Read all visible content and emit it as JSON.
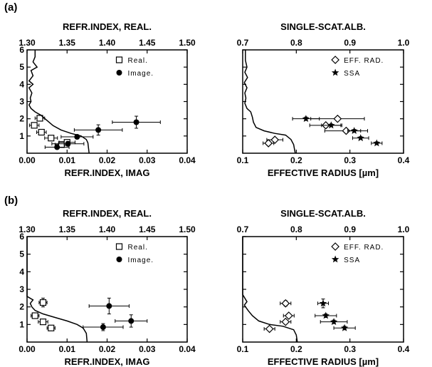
{
  "chart_data": [
    {
      "type": "scatter",
      "panel": "(a)",
      "side": "left",
      "xlabel_bottom": "REFR.INDEX, IMAG",
      "xlabel_top": "REFR.INDEX, REAL.",
      "xlim_bottom": [
        0.0,
        0.04
      ],
      "xlim_top": [
        1.3,
        1.5
      ],
      "ylim": [
        0,
        6
      ],
      "xticks_bottom": [
        "0.00",
        "0.01",
        "0.02",
        "0.03",
        "0.04"
      ],
      "xticks_top": [
        "1.30",
        "1.35",
        "1.40",
        "1.45",
        "1.50"
      ],
      "yticks": [
        "1",
        "2",
        "3",
        "4",
        "5",
        "6"
      ],
      "legend": [
        "Real.",
        "Image."
      ],
      "series": [
        {
          "name": "Real.",
          "axis": "top",
          "marker": "open-square",
          "points": [
            {
              "x": 1.316,
              "y": 2.03,
              "xerr": 0.006,
              "yerr": 0.08
            },
            {
              "x": 1.309,
              "y": 1.62,
              "xerr": 0.006,
              "yerr": 0.08
            },
            {
              "x": 1.318,
              "y": 1.22,
              "xerr": 0.006,
              "yerr": 0.08
            },
            {
              "x": 1.33,
              "y": 0.88,
              "xerr": 0.008,
              "yerr": 0.15
            },
            {
              "x": 1.343,
              "y": 0.5,
              "xerr": 0.008,
              "yerr": 0.08
            },
            {
              "x": 1.35,
              "y": 0.63,
              "xerr": 0.01,
              "yerr": 0.08
            }
          ]
        },
        {
          "name": "Image.",
          "axis": "bottom",
          "marker": "filled-circle",
          "points": [
            {
              "x": 0.0273,
              "y": 1.8,
              "xerr": 0.006,
              "yerr": 0.35
            },
            {
              "x": 0.0178,
              "y": 1.35,
              "xerr": 0.006,
              "yerr": 0.3
            },
            {
              "x": 0.0125,
              "y": 0.95,
              "xerr": 0.004,
              "yerr": 0.12
            },
            {
              "x": 0.0102,
              "y": 0.55,
              "xerr": 0.004,
              "yerr": 0.12
            },
            {
              "x": 0.0075,
              "y": 0.35,
              "xerr": 0.003,
              "yerr": 0.08
            }
          ]
        },
        {
          "name": "profile",
          "type": "line",
          "points": [
            [
              0.002,
              6.0
            ],
            [
              0.002,
              5.6
            ],
            [
              0.0015,
              5.3
            ],
            [
              0.0025,
              5.0
            ],
            [
              0.001,
              4.8
            ],
            [
              0.0015,
              4.5
            ],
            [
              0.0005,
              4.2
            ],
            [
              0.0015,
              4.0
            ],
            [
              0.0005,
              3.8
            ],
            [
              0.0012,
              3.5
            ],
            [
              0.0008,
              3.2
            ],
            [
              0.001,
              3.0
            ],
            [
              0.0005,
              2.8
            ],
            [
              0.001,
              2.6
            ],
            [
              0.002,
              2.4
            ],
            [
              0.0035,
              2.2
            ],
            [
              0.005,
              1.9
            ],
            [
              0.0065,
              1.6
            ],
            [
              0.0085,
              1.35
            ],
            [
              0.011,
              1.15
            ],
            [
              0.0135,
              1.0
            ],
            [
              0.0148,
              0.8
            ],
            [
              0.0152,
              0.6
            ],
            [
              0.0155,
              0.0
            ]
          ]
        }
      ]
    },
    {
      "type": "scatter",
      "panel": "(a)",
      "side": "right",
      "xlabel_bottom": "EFFECTIVE RADIUS [µm]",
      "xlabel_top": "SINGLE-SCAT.ALB.",
      "xlim_bottom": [
        0.1,
        0.4
      ],
      "xlim_top": [
        0.7,
        1.0
      ],
      "ylim": [
        0,
        6
      ],
      "xticks_bottom": [
        "0.1",
        "0.2",
        "0.3",
        "0.4"
      ],
      "xticks_top": [
        "0.7",
        "0.8",
        "0.9",
        "1.0"
      ],
      "legend": [
        "EFF. RAD.",
        "SSA"
      ],
      "series": [
        {
          "name": "EFF. RAD.",
          "axis": "bottom",
          "marker": "open-diamond",
          "points": [
            {
              "x": 0.277,
              "y": 2.0,
              "xerr": 0.05,
              "yerr": 0.1
            },
            {
              "x": 0.255,
              "y": 1.62,
              "xerr": 0.03,
              "yerr": 0.08
            },
            {
              "x": 0.293,
              "y": 1.3,
              "xerr": 0.04,
              "yerr": 0.08
            },
            {
              "x": 0.16,
              "y": 0.78,
              "xerr": 0.015,
              "yerr": 0.08
            },
            {
              "x": 0.148,
              "y": 0.58,
              "xerr": 0.01,
              "yerr": 0.08
            }
          ]
        },
        {
          "name": "SSA",
          "axis": "top",
          "marker": "filled-star",
          "points": [
            {
              "x": 0.818,
              "y": 2.0,
              "xerr": 0.025,
              "yerr": 0.1
            },
            {
              "x": 0.865,
              "y": 1.62,
              "xerr": 0.018,
              "yerr": 0.08
            },
            {
              "x": 0.908,
              "y": 1.3,
              "xerr": 0.012,
              "yerr": 0.08
            },
            {
              "x": 0.92,
              "y": 0.88,
              "xerr": 0.015,
              "yerr": 0.08
            },
            {
              "x": 0.95,
              "y": 0.58,
              "xerr": 0.01,
              "yerr": 0.08
            }
          ]
        },
        {
          "name": "profile",
          "type": "line",
          "points": [
            [
              0.105,
              6.0
            ],
            [
              0.105,
              5.4
            ],
            [
              0.108,
              5.0
            ],
            [
              0.104,
              4.7
            ],
            [
              0.109,
              4.4
            ],
            [
              0.103,
              4.1
            ],
            [
              0.108,
              3.8
            ],
            [
              0.104,
              3.5
            ],
            [
              0.106,
              3.2
            ],
            [
              0.104,
              2.9
            ],
            [
              0.108,
              2.6
            ],
            [
              0.115,
              2.4
            ],
            [
              0.118,
              2.1
            ],
            [
              0.12,
              1.8
            ],
            [
              0.125,
              1.5
            ],
            [
              0.14,
              1.3
            ],
            [
              0.16,
              1.15
            ],
            [
              0.18,
              1.05
            ],
            [
              0.19,
              0.8
            ],
            [
              0.195,
              0.5
            ],
            [
              0.198,
              0.0
            ]
          ]
        }
      ]
    },
    {
      "type": "scatter",
      "panel": "(b)",
      "side": "left",
      "xlabel_bottom": "REFR.INDEX, IMAG",
      "xlabel_top": "REFR.INDEX, REAL.",
      "xlim_bottom": [
        0.0,
        0.04
      ],
      "xlim_top": [
        1.3,
        1.5
      ],
      "ylim": [
        0,
        6
      ],
      "xticks_bottom": [
        "0.00",
        "0.01",
        "0.02",
        "0.03",
        "0.04"
      ],
      "xticks_top": [
        "1.30",
        "1.35",
        "1.40",
        "1.45",
        "1.50"
      ],
      "yticks": [
        "1",
        "2",
        "3",
        "4",
        "5",
        "6"
      ],
      "legend": [
        "Real.",
        "Image."
      ],
      "series": [
        {
          "name": "Real.",
          "axis": "top",
          "marker": "open-square",
          "points": [
            {
              "x": 1.32,
              "y": 2.25,
              "xerr": 0.005,
              "yerr": 0.25
            },
            {
              "x": 1.31,
              "y": 1.5,
              "xerr": 0.005,
              "yerr": 0.1
            },
            {
              "x": 1.32,
              "y": 1.15,
              "xerr": 0.006,
              "yerr": 0.1
            },
            {
              "x": 1.33,
              "y": 0.8,
              "xerr": 0.005,
              "yerr": 0.1
            }
          ]
        },
        {
          "name": "Image.",
          "axis": "bottom",
          "marker": "filled-circle",
          "points": [
            {
              "x": 0.0205,
              "y": 2.05,
              "xerr": 0.005,
              "yerr": 0.45
            },
            {
              "x": 0.026,
              "y": 1.2,
              "xerr": 0.004,
              "yerr": 0.35
            },
            {
              "x": 0.019,
              "y": 0.85,
              "xerr": 0.005,
              "yerr": 0.2
            }
          ]
        },
        {
          "name": "profile",
          "type": "line",
          "points": [
            [
              0.0,
              6.0
            ],
            [
              0.0,
              2.6
            ],
            [
              0.0015,
              2.4
            ],
            [
              0.0008,
              2.2
            ],
            [
              0.0012,
              2.0
            ],
            [
              0.002,
              1.8
            ],
            [
              0.004,
              1.6
            ],
            [
              0.007,
              1.4
            ],
            [
              0.01,
              1.2
            ],
            [
              0.0125,
              1.0
            ],
            [
              0.014,
              0.8
            ],
            [
              0.0148,
              0.5
            ],
            [
              0.015,
              0.0
            ]
          ]
        }
      ]
    },
    {
      "type": "scatter",
      "panel": "(b)",
      "side": "right",
      "xlabel_bottom": "EFFECTIVE RADIUS [µm]",
      "xlabel_top": "SINGLE-SCAT.ALB.",
      "xlim_bottom": [
        0.1,
        0.4
      ],
      "xlim_top": [
        0.7,
        1.0
      ],
      "ylim": [
        0,
        6
      ],
      "xticks_bottom": [
        "0.1",
        "0.2",
        "0.3",
        "0.4"
      ],
      "xticks_top": [
        "0.7",
        "0.8",
        "0.9",
        "1.0"
      ],
      "legend": [
        "EFF. RAD.",
        "SSA"
      ],
      "series": [
        {
          "name": "EFF. RAD.",
          "axis": "bottom",
          "marker": "open-diamond",
          "points": [
            {
              "x": 0.18,
              "y": 2.2,
              "xerr": 0.01,
              "yerr": 0.15
            },
            {
              "x": 0.186,
              "y": 1.5,
              "xerr": 0.01,
              "yerr": 0.1
            },
            {
              "x": 0.18,
              "y": 1.15,
              "xerr": 0.01,
              "yerr": 0.1
            },
            {
              "x": 0.15,
              "y": 0.75,
              "xerr": 0.01,
              "yerr": 0.05
            }
          ]
        },
        {
          "name": "SSA",
          "axis": "top",
          "marker": "filled-star",
          "points": [
            {
              "x": 0.85,
              "y": 2.2,
              "xerr": 0.01,
              "yerr": 0.25
            },
            {
              "x": 0.855,
              "y": 1.5,
              "xerr": 0.02,
              "yerr": 0.1
            },
            {
              "x": 0.87,
              "y": 1.15,
              "xerr": 0.025,
              "yerr": 0.1
            },
            {
              "x": 0.89,
              "y": 0.8,
              "xerr": 0.02,
              "yerr": 0.1
            }
          ]
        },
        {
          "name": "profile",
          "type": "line",
          "points": [
            [
              0.1,
              6.0
            ],
            [
              0.1,
              2.7
            ],
            [
              0.108,
              2.3
            ],
            [
              0.103,
              2.1
            ],
            [
              0.11,
              1.8
            ],
            [
              0.118,
              1.5
            ],
            [
              0.13,
              1.2
            ],
            [
              0.15,
              1.0
            ],
            [
              0.175,
              0.9
            ],
            [
              0.195,
              0.7
            ],
            [
              0.2,
              0.4
            ],
            [
              0.202,
              0.0
            ]
          ]
        }
      ]
    }
  ],
  "panel_labels": [
    "(a)",
    "(b)"
  ]
}
